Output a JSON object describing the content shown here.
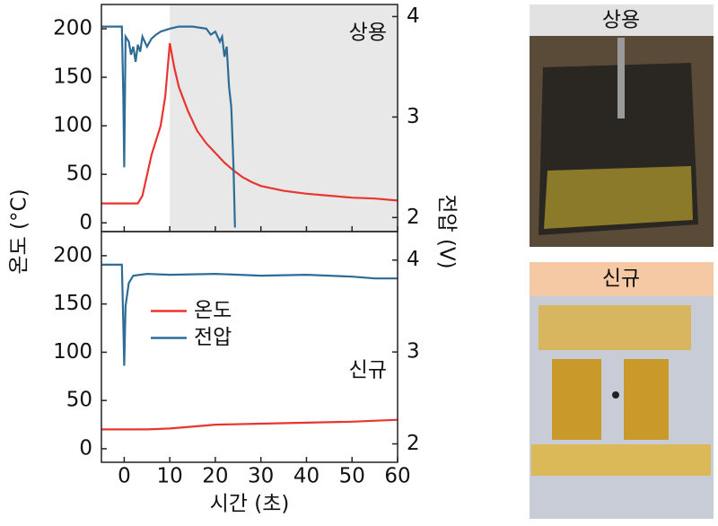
{
  "chart_data": [
    {
      "type": "line",
      "annotation": "상용",
      "ylabel": "온도 (°C)",
      "y2label": "전압 (V)",
      "xlim": [
        -5,
        60
      ],
      "xticks": [
        0,
        10,
        20,
        30,
        40,
        50,
        60
      ],
      "ylim": [
        -9,
        225
      ],
      "yticks": [
        0,
        50,
        100,
        150,
        200
      ],
      "y2lim": [
        1.86,
        4.12
      ],
      "y2ticks": [
        2,
        3,
        4
      ],
      "highlight": [
        10,
        60
      ],
      "highlight_color": "#e8e8e8",
      "series": [
        {
          "color": "#e8352f",
          "x": [
            -5,
            3,
            4,
            6,
            8,
            9,
            10,
            11,
            12,
            14,
            16,
            18,
            20,
            22,
            24,
            26,
            28,
            30,
            35,
            40,
            45,
            50,
            55,
            60
          ],
          "values": [
            20,
            20,
            28,
            70,
            100,
            130,
            185,
            160,
            140,
            115,
            95,
            82,
            72,
            62,
            54,
            47,
            42,
            38,
            33,
            30,
            28,
            26,
            25,
            23
          ]
        },
        {
          "color": "#2e6c96",
          "axis": "y2",
          "x": [
            -5,
            -0.5,
            -0.2,
            0,
            0.3,
            1,
            1.5,
            2,
            2.5,
            3,
            3.5,
            4,
            5,
            6,
            7,
            8,
            10,
            12,
            15,
            18,
            19,
            20,
            21,
            21.5,
            22,
            22.5,
            23,
            23.5,
            24,
            24.3
          ],
          "values": [
            3.9,
            3.9,
            3.2,
            2.5,
            3.8,
            3.75,
            3.62,
            3.7,
            3.55,
            3.72,
            3.65,
            3.8,
            3.7,
            3.78,
            3.82,
            3.85,
            3.88,
            3.9,
            3.9,
            3.88,
            3.82,
            3.85,
            3.75,
            3.8,
            3.6,
            3.7,
            3.3,
            3.1,
            2.5,
            1.9
          ]
        }
      ]
    },
    {
      "type": "line",
      "annotation": "신규",
      "xlabel": "시간 (초)",
      "legend": "center-left",
      "xlim": [
        -5,
        60
      ],
      "xticks": [
        0,
        10,
        20,
        30,
        40,
        50,
        60
      ],
      "ylim": [
        -14,
        225
      ],
      "yticks": [
        0,
        50,
        100,
        150,
        200
      ],
      "y2lim": [
        1.8,
        4.31
      ],
      "y2ticks": [
        2,
        3,
        4
      ],
      "series": [
        {
          "name": "온도",
          "color": "#e8352f",
          "x": [
            -5,
            5,
            10,
            20,
            30,
            40,
            50,
            60
          ],
          "values": [
            20,
            20,
            21,
            25,
            26,
            27,
            28,
            30
          ]
        },
        {
          "name": "전압",
          "color": "#2e6c96",
          "axis": "y2",
          "x": [
            -5,
            -0.5,
            -0.2,
            0,
            0.3,
            1,
            2,
            5,
            10,
            20,
            30,
            40,
            50,
            55,
            60
          ],
          "values": [
            3.95,
            3.95,
            3.3,
            2.85,
            3.5,
            3.75,
            3.83,
            3.85,
            3.84,
            3.85,
            3.83,
            3.84,
            3.82,
            3.8,
            3.8
          ]
        }
      ]
    }
  ],
  "photos": [
    {
      "label": "상용"
    },
    {
      "label": "신규"
    }
  ]
}
